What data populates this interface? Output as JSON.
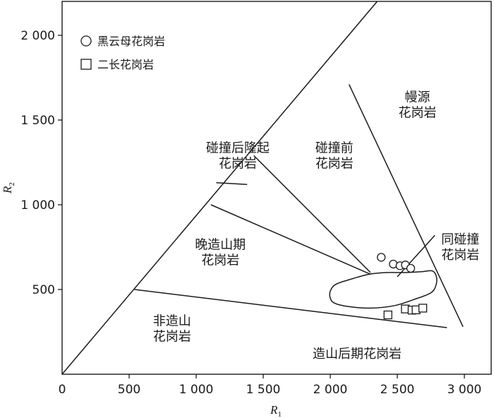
{
  "chart_data": {
    "type": "scatter",
    "xlabel": "R",
    "xlabel_sub": "1",
    "ylabel": "R",
    "ylabel_sub": "2",
    "xlim": [
      0,
      3200
    ],
    "ylim": [
      0,
      2200
    ],
    "x_ticks": [
      {
        "value": 0,
        "label": "0"
      },
      {
        "value": 500,
        "label": "500"
      },
      {
        "value": 1000,
        "label": "1 000"
      },
      {
        "value": 1500,
        "label": "1 500"
      },
      {
        "value": 2000,
        "label": "2 000"
      },
      {
        "value": 2500,
        "label": "2 500"
      },
      {
        "value": 3000,
        "label": "3 000"
      }
    ],
    "y_ticks": [
      {
        "value": 500,
        "label": "500"
      },
      {
        "value": 1000,
        "label": "1 000"
      },
      {
        "value": 1500,
        "label": "1 500"
      },
      {
        "value": 2000,
        "label": "2 000"
      }
    ],
    "legend": {
      "placement": "top-left",
      "entries": [
        {
          "marker": "circle",
          "label": "黑云母花岗岩"
        },
        {
          "marker": "square",
          "label": "二长花岗岩"
        }
      ]
    },
    "series": [
      {
        "marker": "circle",
        "points": [
          [
            2380,
            690
          ],
          [
            2470,
            650
          ],
          [
            2520,
            640
          ],
          [
            2560,
            645
          ],
          [
            2600,
            625
          ]
        ]
      },
      {
        "marker": "square",
        "points": [
          [
            2430,
            350
          ],
          [
            2560,
            385
          ],
          [
            2610,
            378
          ],
          [
            2640,
            380
          ],
          [
            2690,
            390
          ]
        ]
      }
    ],
    "boundaries": [
      {
        "from": [
          0,
          0
        ],
        "to": [
          2350,
          2200
        ]
      },
      {
        "from": [
          1150,
          1130
        ],
        "to": [
          1380,
          1120
        ]
      },
      {
        "from": [
          1430,
          1290
        ],
        "to": [
          2300,
          600
        ]
      },
      {
        "from": [
          1110,
          1000
        ],
        "to": [
          2300,
          590
        ]
      },
      {
        "from": [
          540,
          500
        ],
        "to": [
          2870,
          275
        ]
      },
      {
        "from": [
          2140,
          1710
        ],
        "to": [
          2990,
          280
        ]
      },
      {
        "from": [
          2500,
          575
        ],
        "to": [
          2780,
          820
        ]
      }
    ],
    "field_outline": [
      [
        2290,
        590
      ],
      [
        2150,
        560
      ],
      [
        2040,
        530
      ],
      [
        2000,
        490
      ],
      [
        2000,
        450
      ],
      [
        2030,
        420
      ],
      [
        2130,
        400
      ],
      [
        2300,
        390
      ],
      [
        2480,
        405
      ],
      [
        2620,
        440
      ],
      [
        2750,
        480
      ],
      [
        2790,
        530
      ],
      [
        2790,
        580
      ],
      [
        2760,
        610
      ],
      [
        2680,
        605
      ],
      [
        2560,
        600
      ],
      [
        2420,
        600
      ],
      [
        2290,
        590
      ]
    ],
    "region_labels": [
      {
        "lines": [
          "碰撞后隆起",
          "花岗岩"
        ],
        "at": [
          1310,
          1310
        ]
      },
      {
        "lines": [
          "碰撞前",
          "花岗岩"
        ],
        "at": [
          2030,
          1310
        ]
      },
      {
        "lines": [
          "幔源",
          "花岗岩"
        ],
        "at": [
          2650,
          1610
        ]
      },
      {
        "lines": [
          "晚造山期",
          "花岗岩"
        ],
        "at": [
          1180,
          740
        ]
      },
      {
        "lines": [
          "同碰撞",
          "花岗岩"
        ],
        "at": [
          2970,
          770
        ]
      },
      {
        "lines": [
          "非造山",
          "花岗岩"
        ],
        "at": [
          820,
          290
        ]
      },
      {
        "lines": [
          "造山后期花岗岩"
        ],
        "at": [
          2200,
          95
        ]
      }
    ],
    "grid": false
  }
}
